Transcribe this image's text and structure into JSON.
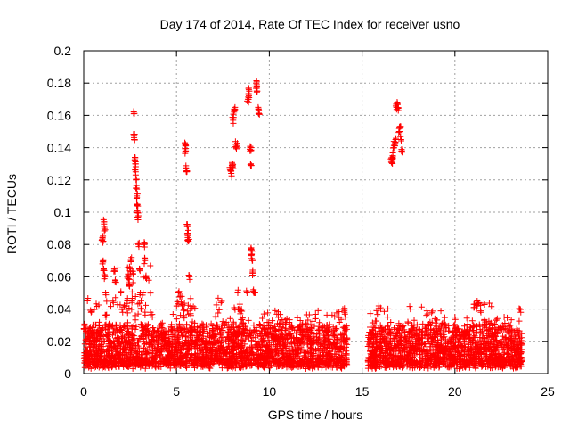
{
  "chart_data": {
    "type": "scatter",
    "title": "Day 174 of 2014, Rate Of TEC Index for receiver usno",
    "xlabel": "GPS time / hours",
    "ylabel": "ROTI / TECUs",
    "xlim": [
      0,
      25
    ],
    "ylim": [
      0,
      0.2
    ],
    "xticks": [
      "0",
      "5",
      "10",
      "15",
      "20",
      "25"
    ],
    "yticks": [
      "0",
      "0.02",
      "0.04",
      "0.06",
      "0.08",
      "0.1",
      "0.12",
      "0.14",
      "0.16",
      "0.18",
      "0.2"
    ],
    "grid": true,
    "marker": "+",
    "color": "#ff0000",
    "series": [
      {
        "points": [
          [
            0.05,
            0.01
          ],
          [
            0.1,
            0.013
          ],
          [
            0.15,
            0.011
          ],
          [
            0.2,
            0.045
          ],
          [
            0.25,
            0.009
          ],
          [
            0.3,
            0.018
          ],
          [
            0.35,
            0.022
          ],
          [
            0.4,
            0.038
          ],
          [
            0.45,
            0.027
          ],
          [
            0.5,
            0.015
          ],
          [
            0.55,
            0.04
          ],
          [
            0.6,
            0.012
          ],
          [
            0.7,
            0.02
          ],
          [
            0.8,
            0.025
          ],
          [
            0.9,
            0.017
          ],
          [
            1.0,
            0.083
          ],
          [
            1.02,
            0.084
          ],
          [
            1.05,
            0.07
          ],
          [
            1.08,
            0.065
          ],
          [
            1.1,
            0.094
          ],
          [
            1.12,
            0.09
          ],
          [
            1.15,
            0.06
          ],
          [
            1.18,
            0.05
          ],
          [
            1.2,
            0.035
          ],
          [
            1.25,
            0.005
          ],
          [
            1.3,
            0.025
          ],
          [
            1.35,
            0.01
          ],
          [
            1.4,
            0.03
          ],
          [
            1.45,
            0.02
          ],
          [
            1.5,
            0.015
          ],
          [
            1.6,
            0.044
          ],
          [
            1.65,
            0.065
          ],
          [
            1.7,
            0.058
          ],
          [
            1.75,
            0.03
          ],
          [
            1.8,
            0.022
          ],
          [
            1.9,
            0.012
          ],
          [
            2.0,
            0.05
          ],
          [
            2.05,
            0.02
          ],
          [
            2.1,
            0.038
          ],
          [
            2.2,
            0.03
          ],
          [
            2.3,
            0.04
          ],
          [
            2.35,
            0.045
          ],
          [
            2.4,
            0.06
          ],
          [
            2.45,
            0.055
          ],
          [
            2.5,
            0.065
          ],
          [
            2.55,
            0.07
          ],
          [
            2.6,
            0.045
          ],
          [
            2.65,
            0.062
          ],
          [
            2.7,
            0.161
          ],
          [
            2.72,
            0.148
          ],
          [
            2.74,
            0.145
          ],
          [
            2.76,
            0.134
          ],
          [
            2.78,
            0.13
          ],
          [
            2.8,
            0.125
          ],
          [
            2.82,
            0.12
          ],
          [
            2.84,
            0.115
          ],
          [
            2.86,
            0.11
          ],
          [
            2.88,
            0.105
          ],
          [
            2.9,
            0.1
          ],
          [
            2.92,
            0.097
          ],
          [
            2.95,
            0.08
          ],
          [
            3.0,
            0.065
          ],
          [
            3.05,
            0.05
          ],
          [
            3.1,
            0.04
          ],
          [
            3.15,
            0.03
          ],
          [
            3.2,
            0.05
          ],
          [
            3.25,
            0.08
          ],
          [
            3.3,
            0.07
          ],
          [
            3.35,
            0.06
          ],
          [
            3.4,
            0.028
          ],
          [
            3.5,
            0.018
          ],
          [
            3.6,
            0.038
          ],
          [
            3.7,
            0.035
          ],
          [
            3.8,
            0.02
          ],
          [
            3.9,
            0.025
          ],
          [
            4.0,
            0.015
          ],
          [
            4.2,
            0.03
          ],
          [
            4.4,
            0.02
          ],
          [
            4.6,
            0.022
          ],
          [
            4.8,
            0.018
          ],
          [
            5.0,
            0.015
          ],
          [
            5.1,
            0.05
          ],
          [
            5.2,
            0.048
          ],
          [
            5.3,
            0.042
          ],
          [
            5.4,
            0.036
          ],
          [
            5.45,
            0.143
          ],
          [
            5.48,
            0.141
          ],
          [
            5.5,
            0.138
          ],
          [
            5.52,
            0.127
          ],
          [
            5.55,
            0.125
          ],
          [
            5.58,
            0.091
          ],
          [
            5.6,
            0.087
          ],
          [
            5.62,
            0.083
          ],
          [
            5.65,
            0.082
          ],
          [
            5.7,
            0.06
          ],
          [
            5.75,
            0.04
          ],
          [
            5.8,
            0.03
          ],
          [
            6.0,
            0.02
          ],
          [
            6.2,
            0.025
          ],
          [
            6.4,
            0.015
          ],
          [
            6.6,
            0.03
          ],
          [
            6.8,
            0.02
          ],
          [
            7.0,
            0.022
          ],
          [
            7.2,
            0.03
          ],
          [
            7.4,
            0.044
          ],
          [
            7.6,
            0.03
          ],
          [
            7.8,
            0.02
          ],
          [
            7.9,
            0.126
          ],
          [
            7.95,
            0.124
          ],
          [
            8.0,
            0.13
          ],
          [
            8.02,
            0.128
          ],
          [
            8.05,
            0.157
          ],
          [
            8.1,
            0.162
          ],
          [
            8.15,
            0.165
          ],
          [
            8.2,
            0.142
          ],
          [
            8.25,
            0.141
          ],
          [
            8.3,
            0.05
          ],
          [
            8.35,
            0.04
          ],
          [
            8.4,
            0.03
          ],
          [
            8.5,
            0.04
          ],
          [
            8.6,
            0.025
          ],
          [
            8.7,
            0.03
          ],
          [
            8.8,
            0.05
          ],
          [
            8.85,
            0.17
          ],
          [
            8.9,
            0.172
          ],
          [
            8.92,
            0.175
          ],
          [
            8.95,
            0.139
          ],
          [
            8.98,
            0.14
          ],
          [
            9.0,
            0.13
          ],
          [
            9.02,
            0.078
          ],
          [
            9.05,
            0.074
          ],
          [
            9.08,
            0.07
          ],
          [
            9.1,
            0.063
          ],
          [
            9.15,
            0.052
          ],
          [
            9.2,
            0.05
          ],
          [
            9.3,
            0.18
          ],
          [
            9.32,
            0.178
          ],
          [
            9.35,
            0.175
          ],
          [
            9.4,
            0.165
          ],
          [
            9.45,
            0.161
          ],
          [
            9.5,
            0.03
          ],
          [
            9.6,
            0.02
          ],
          [
            9.8,
            0.025
          ],
          [
            10.0,
            0.015
          ],
          [
            10.2,
            0.03
          ],
          [
            10.5,
            0.022
          ],
          [
            10.8,
            0.018
          ],
          [
            11.0,
            0.025
          ],
          [
            11.3,
            0.02
          ],
          [
            11.5,
            0.015
          ],
          [
            11.8,
            0.022
          ],
          [
            12.0,
            0.03
          ],
          [
            12.2,
            0.02
          ],
          [
            12.5,
            0.035
          ],
          [
            12.7,
            0.025
          ],
          [
            13.0,
            0.02
          ],
          [
            13.2,
            0.018
          ],
          [
            13.5,
            0.025
          ],
          [
            13.8,
            0.015
          ],
          [
            14.0,
            0.02
          ],
          [
            14.05,
            0.038
          ],
          [
            14.1,
            0.035
          ],
          [
            15.4,
            0.02
          ],
          [
            15.5,
            0.012
          ],
          [
            15.6,
            0.025
          ],
          [
            15.8,
            0.015
          ],
          [
            15.9,
            0.042
          ],
          [
            16.0,
            0.04
          ],
          [
            16.2,
            0.02
          ],
          [
            16.4,
            0.03
          ],
          [
            16.5,
            0.025
          ],
          [
            16.55,
            0.133
          ],
          [
            16.6,
            0.132
          ],
          [
            16.65,
            0.135
          ],
          [
            16.7,
            0.14
          ],
          [
            16.75,
            0.142
          ],
          [
            16.8,
            0.145
          ],
          [
            16.85,
            0.165
          ],
          [
            16.9,
            0.167
          ],
          [
            16.95,
            0.163
          ],
          [
            17.0,
            0.15
          ],
          [
            17.05,
            0.153
          ],
          [
            17.1,
            0.145
          ],
          [
            17.15,
            0.138
          ],
          [
            17.2,
            0.03
          ],
          [
            17.4,
            0.02
          ],
          [
            17.6,
            0.04
          ],
          [
            17.8,
            0.03
          ],
          [
            18.0,
            0.02
          ],
          [
            18.2,
            0.025
          ],
          [
            18.5,
            0.015
          ],
          [
            18.8,
            0.02
          ],
          [
            19.0,
            0.03
          ],
          [
            19.2,
            0.025
          ],
          [
            19.5,
            0.015
          ],
          [
            19.8,
            0.02
          ],
          [
            20.0,
            0.035
          ],
          [
            20.2,
            0.02
          ],
          [
            20.5,
            0.015
          ],
          [
            20.8,
            0.025
          ],
          [
            21.0,
            0.03
          ],
          [
            21.2,
            0.045
          ],
          [
            21.3,
            0.044
          ],
          [
            21.4,
            0.038
          ],
          [
            21.6,
            0.03
          ],
          [
            21.8,
            0.02
          ],
          [
            22.0,
            0.025
          ],
          [
            22.2,
            0.015
          ],
          [
            22.5,
            0.02
          ],
          [
            22.8,
            0.018
          ],
          [
            23.0,
            0.022
          ],
          [
            23.2,
            0.015
          ],
          [
            23.4,
            0.02
          ],
          [
            23.5,
            0.04
          ],
          [
            23.55,
            0.038
          ],
          [
            23.6,
            0.015
          ]
        ]
      }
    ],
    "baseline_segments": [
      {
        "x0": 0.0,
        "x1": 14.2,
        "spikes": [
          [
            0.3,
            1.6,
            0.045
          ],
          [
            1.6,
            3.6,
            0.07
          ],
          [
            4.8,
            6.0,
            0.05
          ],
          [
            7.0,
            9.0,
            0.045
          ],
          [
            9.6,
            14.2,
            0.04
          ]
        ]
      },
      {
        "x0": 15.3,
        "x1": 23.6,
        "spikes": [
          [
            15.3,
            16.6,
            0.04
          ],
          [
            17.4,
            19.5,
            0.04
          ],
          [
            20.6,
            22.0,
            0.045
          ],
          [
            22.0,
            23.6,
            0.035
          ]
        ]
      }
    ],
    "baseline_range": [
      0.005,
      0.03
    ]
  }
}
